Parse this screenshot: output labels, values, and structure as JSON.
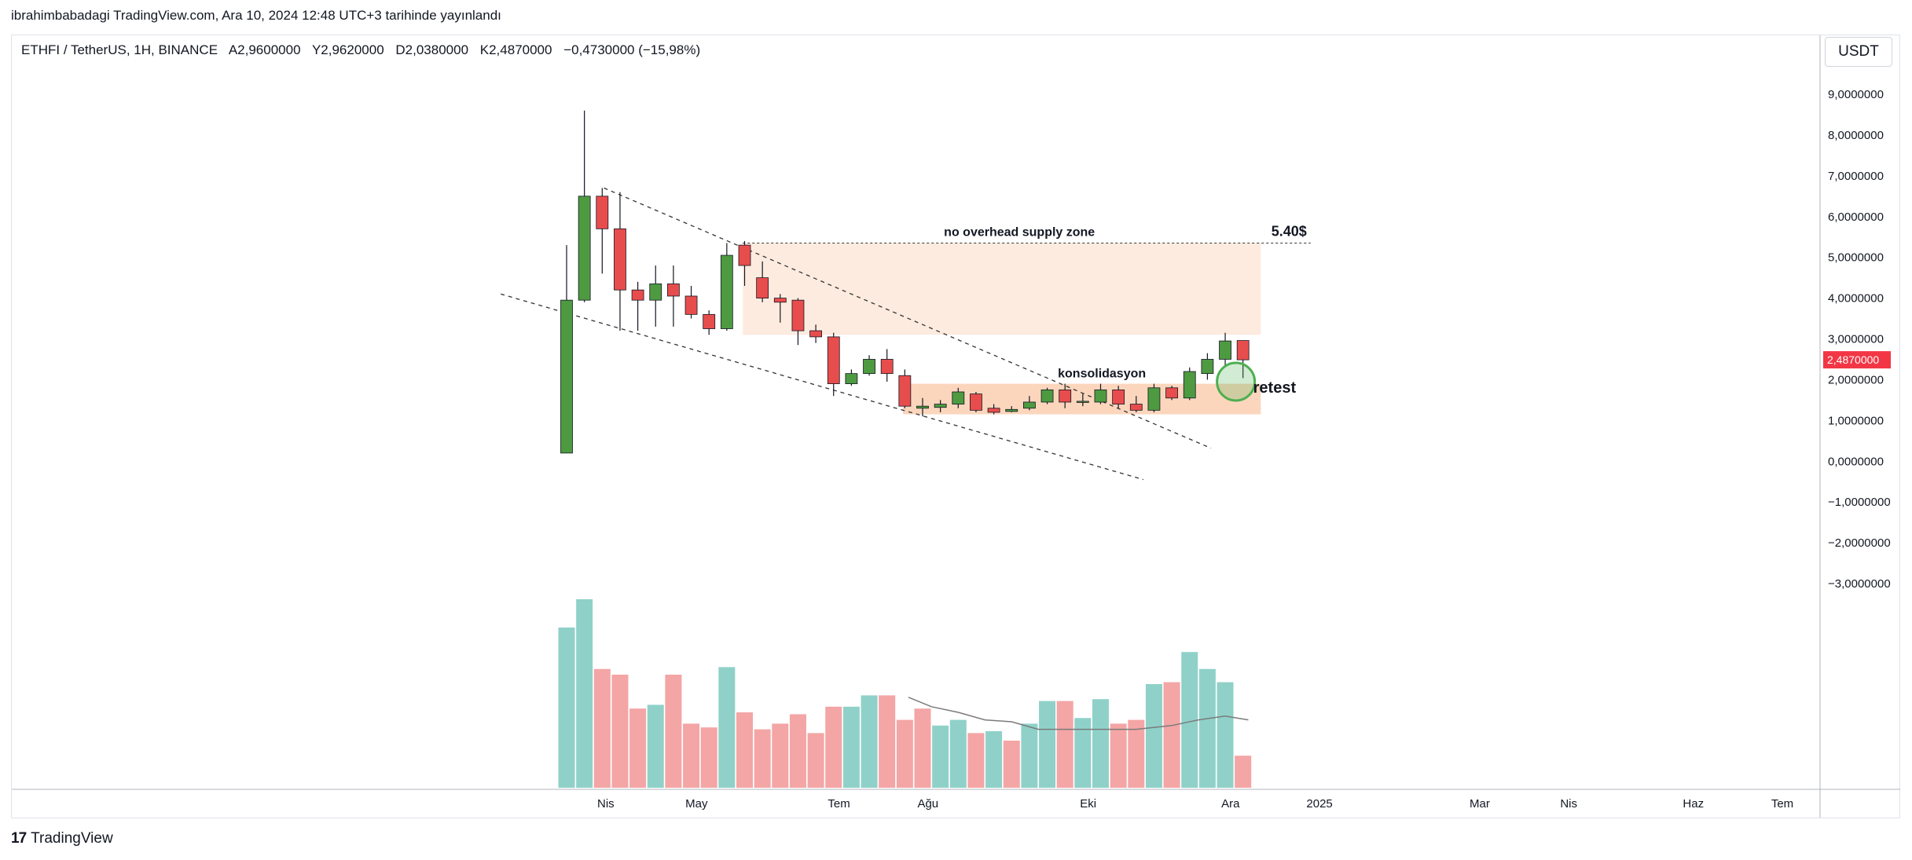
{
  "header": {
    "published_line": "ibrahimbabadagi TradingView.com, Ara 10, 2024 12:48 UTC+3 tarihinde yayınlandı"
  },
  "symbol": {
    "name": "ETHFI / TetherUS, 1H, BINANCE",
    "open": "A2,9600000",
    "high": "Y2,9620000",
    "low": "D2,0380000",
    "close": "K2,4870000",
    "change": "−0,4730000 (−15,98%)"
  },
  "currency_button": "USDT",
  "footer": {
    "logo_mark": "17",
    "brand": "TradingView"
  },
  "colors": {
    "up": "#4e9a41",
    "down": "#e84d4d",
    "vol_up": "#8fd1c9",
    "vol_down": "#f4a5a5",
    "zone_top": "#fdebdf",
    "zone_consol": "#fbd6bd",
    "circle": "#4caf50",
    "price_badge": "#f23645"
  },
  "chart_data": {
    "type": "candlestick",
    "interval_label": "1H",
    "y_axis": {
      "min": -3.8,
      "max": 9.4,
      "ticks": [
        9,
        8,
        7,
        6,
        5,
        4,
        3,
        2,
        1,
        0,
        -1,
        -2,
        -3
      ],
      "tick_labels": [
        "9,0000000",
        "8,0000000",
        "7,0000000",
        "6,0000000",
        "5,0000000",
        "4,0000000",
        "3,0000000",
        "2,0000000",
        "1,0000000",
        "0,0000000",
        "−1,0000000",
        "−2,0000000",
        "−3,0000000"
      ],
      "last_price": 2.487,
      "last_price_label": "2,4870000"
    },
    "x_axis": {
      "labels": [
        {
          "text": "Nis",
          "bar": 2.2
        },
        {
          "text": "May",
          "bar": 7.3
        },
        {
          "text": "Tem",
          "bar": 15.3
        },
        {
          "text": "Ağu",
          "bar": 20.3
        },
        {
          "text": "Eki",
          "bar": 29.3
        },
        {
          "text": "Ara",
          "bar": 37.3
        },
        {
          "text": "2025",
          "bar": 42.3
        },
        {
          "text": "Mar",
          "bar": 51.3
        },
        {
          "text": "Nis",
          "bar": 56.3
        },
        {
          "text": "Haz",
          "bar": 63.3
        },
        {
          "text": "Tem",
          "bar": 68.3
        }
      ]
    },
    "candles": [
      {
        "o": 0.2,
        "h": 5.3,
        "l": 0.2,
        "c": 3.95
      },
      {
        "o": 3.95,
        "h": 8.6,
        "l": 3.9,
        "c": 6.5
      },
      {
        "o": 6.5,
        "h": 6.7,
        "l": 4.6,
        "c": 5.7
      },
      {
        "o": 5.7,
        "h": 6.6,
        "l": 3.2,
        "c": 4.2
      },
      {
        "o": 4.2,
        "h": 4.4,
        "l": 3.2,
        "c": 3.95
      },
      {
        "o": 3.95,
        "h": 4.8,
        "l": 3.3,
        "c": 4.35
      },
      {
        "o": 4.35,
        "h": 4.8,
        "l": 3.3,
        "c": 4.05
      },
      {
        "o": 4.05,
        "h": 4.3,
        "l": 3.5,
        "c": 3.6
      },
      {
        "o": 3.6,
        "h": 3.7,
        "l": 3.1,
        "c": 3.25
      },
      {
        "o": 3.25,
        "h": 5.35,
        "l": 3.2,
        "c": 5.05
      },
      {
        "o": 5.3,
        "h": 5.4,
        "l": 4.3,
        "c": 4.8
      },
      {
        "o": 4.5,
        "h": 4.9,
        "l": 3.9,
        "c": 4.0
      },
      {
        "o": 4.0,
        "h": 4.1,
        "l": 3.4,
        "c": 3.9
      },
      {
        "o": 3.95,
        "h": 4.0,
        "l": 2.85,
        "c": 3.2
      },
      {
        "o": 3.2,
        "h": 3.35,
        "l": 2.9,
        "c": 3.05
      },
      {
        "o": 3.05,
        "h": 3.15,
        "l": 1.6,
        "c": 1.9
      },
      {
        "o": 1.9,
        "h": 2.25,
        "l": 1.85,
        "c": 2.15
      },
      {
        "o": 2.15,
        "h": 2.6,
        "l": 2.1,
        "c": 2.5
      },
      {
        "o": 2.5,
        "h": 2.75,
        "l": 1.95,
        "c": 2.15
      },
      {
        "o": 2.1,
        "h": 2.25,
        "l": 1.3,
        "c": 1.35
      },
      {
        "o": 1.3,
        "h": 1.55,
        "l": 1.1,
        "c": 1.35
      },
      {
        "o": 1.32,
        "h": 1.5,
        "l": 1.2,
        "c": 1.4
      },
      {
        "o": 1.4,
        "h": 1.8,
        "l": 1.3,
        "c": 1.7
      },
      {
        "o": 1.65,
        "h": 1.7,
        "l": 1.2,
        "c": 1.25
      },
      {
        "o": 1.3,
        "h": 1.4,
        "l": 1.15,
        "c": 1.2
      },
      {
        "o": 1.22,
        "h": 1.35,
        "l": 1.2,
        "c": 1.27
      },
      {
        "o": 1.3,
        "h": 1.6,
        "l": 1.25,
        "c": 1.45
      },
      {
        "o": 1.45,
        "h": 1.8,
        "l": 1.4,
        "c": 1.75
      },
      {
        "o": 1.75,
        "h": 1.9,
        "l": 1.3,
        "c": 1.45
      },
      {
        "o": 1.45,
        "h": 1.65,
        "l": 1.35,
        "c": 1.47
      },
      {
        "o": 1.45,
        "h": 1.9,
        "l": 1.4,
        "c": 1.75
      },
      {
        "o": 1.75,
        "h": 1.85,
        "l": 1.3,
        "c": 1.4
      },
      {
        "o": 1.4,
        "h": 1.6,
        "l": 1.2,
        "c": 1.25
      },
      {
        "o": 1.25,
        "h": 1.9,
        "l": 1.2,
        "c": 1.8
      },
      {
        "o": 1.8,
        "h": 1.85,
        "l": 1.5,
        "c": 1.55
      },
      {
        "o": 1.55,
        "h": 2.3,
        "l": 1.5,
        "c": 2.2
      },
      {
        "o": 2.15,
        "h": 2.65,
        "l": 2.0,
        "c": 2.5
      },
      {
        "o": 2.5,
        "h": 3.15,
        "l": 2.3,
        "c": 2.95
      },
      {
        "o": 2.96,
        "h": 2.962,
        "l": 2.038,
        "c": 2.487
      }
    ],
    "volume": [
      {
        "v": 0.85,
        "up": true
      },
      {
        "v": 1.0,
        "up": true
      },
      {
        "v": 0.63,
        "up": false
      },
      {
        "v": 0.6,
        "up": false
      },
      {
        "v": 0.42,
        "up": false
      },
      {
        "v": 0.44,
        "up": true
      },
      {
        "v": 0.6,
        "up": false
      },
      {
        "v": 0.34,
        "up": false
      },
      {
        "v": 0.32,
        "up": false
      },
      {
        "v": 0.64,
        "up": true
      },
      {
        "v": 0.4,
        "up": false
      },
      {
        "v": 0.31,
        "up": false
      },
      {
        "v": 0.34,
        "up": false
      },
      {
        "v": 0.39,
        "up": false
      },
      {
        "v": 0.29,
        "up": false
      },
      {
        "v": 0.43,
        "up": false
      },
      {
        "v": 0.43,
        "up": true
      },
      {
        "v": 0.49,
        "up": true
      },
      {
        "v": 0.49,
        "up": false
      },
      {
        "v": 0.36,
        "up": false
      },
      {
        "v": 0.42,
        "up": false
      },
      {
        "v": 0.33,
        "up": true
      },
      {
        "v": 0.36,
        "up": true
      },
      {
        "v": 0.29,
        "up": false
      },
      {
        "v": 0.3,
        "up": true
      },
      {
        "v": 0.25,
        "up": false
      },
      {
        "v": 0.34,
        "up": true
      },
      {
        "v": 0.46,
        "up": true
      },
      {
        "v": 0.46,
        "up": false
      },
      {
        "v": 0.37,
        "up": true
      },
      {
        "v": 0.47,
        "up": true
      },
      {
        "v": 0.34,
        "up": false
      },
      {
        "v": 0.36,
        "up": false
      },
      {
        "v": 0.55,
        "up": true
      },
      {
        "v": 0.56,
        "up": false
      },
      {
        "v": 0.72,
        "up": true
      },
      {
        "v": 0.63,
        "up": true
      },
      {
        "v": 0.56,
        "up": true
      },
      {
        "v": 0.17,
        "up": false
      }
    ],
    "volume_ma": [
      {
        "bar": 19.2,
        "v": 0.48
      },
      {
        "bar": 20.5,
        "v": 0.43
      },
      {
        "bar": 22,
        "v": 0.4
      },
      {
        "bar": 23.5,
        "v": 0.36
      },
      {
        "bar": 25,
        "v": 0.35
      },
      {
        "bar": 26.5,
        "v": 0.31
      },
      {
        "bar": 28,
        "v": 0.31
      },
      {
        "bar": 30,
        "v": 0.31
      },
      {
        "bar": 32,
        "v": 0.31
      },
      {
        "bar": 34,
        "v": 0.33
      },
      {
        "bar": 35.5,
        "v": 0.36
      },
      {
        "bar": 37,
        "v": 0.38
      },
      {
        "bar": 38.3,
        "v": 0.36
      }
    ],
    "annotations": {
      "supply_zone": {
        "label": "no overhead supply zone",
        "price_label": "5.40$",
        "top": 5.35,
        "bottom": 3.1,
        "start_bar": 9.9,
        "end_bar": 39,
        "dashed_line_end_bar": 41.8
      },
      "consolidation_zone": {
        "label": "konsolidasyon",
        "top": 1.9,
        "bottom": 1.15,
        "start_bar": 18.9,
        "end_bar": 39
      },
      "retest": {
        "label": "retest",
        "bar": 37.6,
        "price": 1.95
      },
      "trendlines": [
        {
          "bar1": -3.7,
          "p1": 4.1,
          "bar2": 32.4,
          "p2": -0.45
        },
        {
          "bar1": 2.1,
          "p1": 6.7,
          "bar2": 36.2,
          "p2": 0.32
        }
      ]
    }
  }
}
